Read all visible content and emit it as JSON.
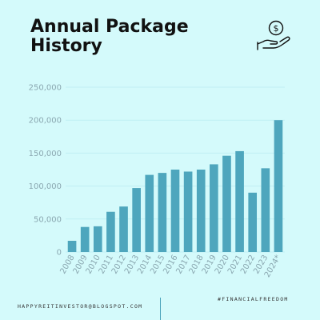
{
  "chart_data": {
    "type": "bar",
    "title": "Annual Package History",
    "categories": [
      "2008",
      "2009",
      "2010",
      "2011",
      "2012",
      "2013",
      "2014",
      "2015",
      "2016",
      "2017",
      "2018",
      "2019",
      "2020",
      "2021",
      "2022",
      "2023",
      "2024*"
    ],
    "values": [
      17000,
      38000,
      39000,
      61000,
      69000,
      97000,
      117000,
      120000,
      125000,
      122000,
      125000,
      133000,
      146000,
      153000,
      90000,
      127000,
      200000
    ],
    "ylim": [
      0,
      250000
    ],
    "yticks": [
      0,
      50000,
      100000,
      150000,
      200000,
      250000
    ],
    "ytick_labels": [
      "0",
      "50,000",
      "100,000",
      "150,000",
      "200,000",
      "250,000"
    ],
    "xlabel": "",
    "ylabel": "",
    "grid": true,
    "bar_color": "#4ea6bd",
    "grid_color": "#bfeff3",
    "label_color": "#8aa7b0"
  },
  "footer": {
    "blog": "HAPPYREITINVESTOR@BLOGSPOT.COM",
    "hashtag": "#FINANCIALFREEDOM"
  },
  "icons": {
    "header": "hand-holding-money-icon"
  },
  "colors": {
    "background": "#d4fafb",
    "title": "#111111"
  }
}
